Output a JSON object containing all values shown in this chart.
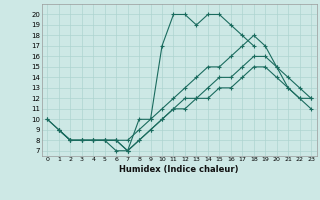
{
  "xlabel": "Humidex (Indice chaleur)",
  "bg_color": "#cde8e5",
  "line_color": "#1a6b5e",
  "grid_color": "#aed4d0",
  "xlim": [
    -0.5,
    23.5
  ],
  "ylim": [
    6.5,
    21
  ],
  "xticks": [
    0,
    1,
    2,
    3,
    4,
    5,
    6,
    7,
    8,
    9,
    10,
    11,
    12,
    13,
    14,
    15,
    16,
    17,
    18,
    19,
    20,
    21,
    22,
    23
  ],
  "yticks": [
    7,
    8,
    9,
    10,
    11,
    12,
    13,
    14,
    15,
    16,
    17,
    18,
    19,
    20
  ],
  "lines": [
    {
      "x": [
        0,
        1,
        2,
        3,
        4,
        5,
        6,
        7,
        8,
        9,
        10,
        11,
        12,
        13,
        14,
        15,
        16,
        17,
        18
      ],
      "y": [
        10,
        9,
        8,
        8,
        8,
        8,
        7,
        7,
        10,
        10,
        17,
        20,
        20,
        19,
        20,
        20,
        19,
        18,
        17
      ]
    },
    {
      "x": [
        1,
        2,
        3,
        4,
        5,
        6,
        7,
        8,
        9,
        10,
        11,
        12,
        13,
        14,
        15,
        16,
        17,
        18,
        19,
        20,
        21,
        22,
        23
      ],
      "y": [
        9,
        8,
        8,
        8,
        8,
        8,
        8,
        9,
        10,
        11,
        12,
        13,
        14,
        15,
        15,
        16,
        17,
        18,
        17,
        15,
        14,
        13,
        12
      ]
    },
    {
      "x": [
        0,
        1,
        2,
        3,
        4,
        5,
        6,
        7,
        8,
        9,
        10,
        11,
        12,
        13,
        14,
        15,
        16,
        17,
        18,
        19,
        20,
        21,
        22,
        23
      ],
      "y": [
        10,
        9,
        8,
        8,
        8,
        8,
        8,
        7,
        8,
        9,
        10,
        11,
        12,
        12,
        13,
        14,
        14,
        15,
        16,
        16,
        15,
        13,
        12,
        12
      ]
    },
    {
      "x": [
        1,
        2,
        3,
        4,
        5,
        6,
        7,
        8,
        9,
        10,
        11,
        12,
        13,
        14,
        15,
        16,
        17,
        18,
        19,
        20,
        21,
        22,
        23
      ],
      "y": [
        9,
        8,
        8,
        8,
        8,
        8,
        7,
        8,
        9,
        10,
        11,
        11,
        12,
        12,
        13,
        13,
        14,
        15,
        15,
        14,
        13,
        12,
        11
      ]
    }
  ]
}
